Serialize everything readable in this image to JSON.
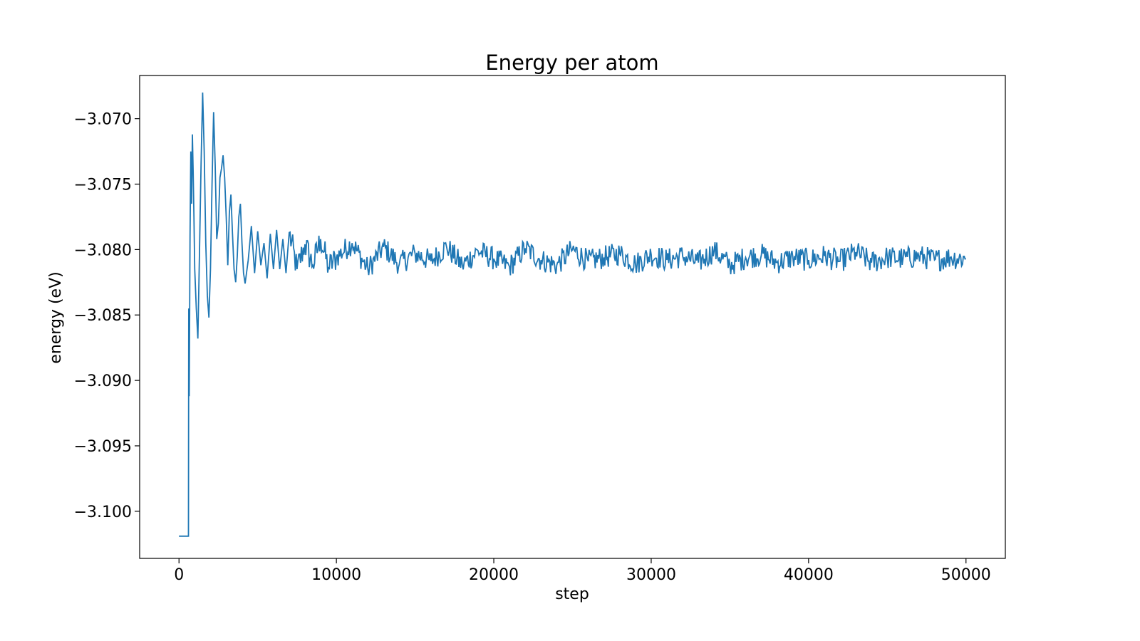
{
  "chart_data": {
    "type": "line",
    "title": "Energy per atom",
    "xlabel": "step",
    "ylabel": "energy (eV)",
    "xlim": [
      -2500,
      52500
    ],
    "ylim": [
      -3.1036,
      -3.0667
    ],
    "grid": false,
    "legend": "none",
    "xticks": [
      {
        "value": 0,
        "label": "0"
      },
      {
        "value": 10000,
        "label": "10000"
      },
      {
        "value": 20000,
        "label": "20000"
      },
      {
        "value": 30000,
        "label": "30000"
      },
      {
        "value": 40000,
        "label": "40000"
      },
      {
        "value": 50000,
        "label": "50000"
      }
    ],
    "yticks": [
      {
        "value": -3.07,
        "label": "−3.070"
      },
      {
        "value": -3.075,
        "label": "−3.075"
      },
      {
        "value": -3.08,
        "label": "−3.080"
      },
      {
        "value": -3.085,
        "label": "−3.085"
      },
      {
        "value": -3.09,
        "label": "−3.090"
      },
      {
        "value": -3.095,
        "label": "−3.095"
      },
      {
        "value": -3.1,
        "label": "−3.100"
      }
    ],
    "series": [
      {
        "color": "#1f77b4",
        "x": [
          0,
          300,
          600,
          620,
          650,
          700,
          750,
          800,
          850,
          900,
          950,
          1000,
          1100,
          1200,
          1300,
          1400,
          1500,
          1600,
          1700,
          1800,
          1900,
          2000,
          2100,
          2200,
          2300,
          2400,
          2500,
          2600,
          2700,
          2800,
          2900,
          3000,
          3100,
          3200,
          3300,
          3400,
          3500,
          3600,
          3700,
          3800,
          3900,
          4000,
          4100,
          4200,
          4400,
          4600,
          4800,
          5000,
          5200,
          5400,
          5600,
          5800,
          6000,
          6200,
          6400,
          6600,
          6800,
          7000,
          7500,
          8000,
          8500,
          9000,
          9500,
          10000,
          11000,
          12000,
          13000,
          14000,
          15000,
          16000,
          17000,
          18000,
          19000,
          20000,
          21000,
          22000,
          23000,
          24000,
          25000,
          26000,
          27000,
          28000,
          29000,
          30000,
          31000,
          32000,
          33000,
          34000,
          35000,
          36000,
          37000,
          38000,
          39000,
          40000,
          41000,
          42000,
          43000,
          44000,
          45000,
          46000,
          47000,
          48000,
          49000,
          50000
        ],
        "y": [
          -3.1019,
          -3.1019,
          -3.1019,
          -3.0845,
          -3.0912,
          -3.079,
          -3.0725,
          -3.0765,
          -3.0712,
          -3.074,
          -3.0775,
          -3.0815,
          -3.0845,
          -3.0868,
          -3.0805,
          -3.0735,
          -3.068,
          -3.0725,
          -3.0795,
          -3.0835,
          -3.0852,
          -3.0815,
          -3.075,
          -3.0695,
          -3.0735,
          -3.0792,
          -3.078,
          -3.0745,
          -3.0738,
          -3.0728,
          -3.0745,
          -3.0775,
          -3.0812,
          -3.0772,
          -3.0758,
          -3.0788,
          -3.0815,
          -3.0825,
          -3.0805,
          -3.0775,
          -3.0765,
          -3.0795,
          -3.0818,
          -3.0826,
          -3.0808,
          -3.0782,
          -3.0818,
          -3.0786,
          -3.0812,
          -3.0795,
          -3.0822,
          -3.0788,
          -3.0815,
          -3.0785,
          -3.0815,
          -3.0792,
          -3.0818,
          -3.0787,
          -3.0815,
          -3.0796,
          -3.0812,
          -3.0792,
          -3.0814,
          -3.0806,
          -3.0795,
          -3.0815,
          -3.0798,
          -3.0811,
          -3.0803,
          -3.0809,
          -3.0798,
          -3.0812,
          -3.0801,
          -3.0807,
          -3.0813,
          -3.0799,
          -3.0808,
          -3.0812,
          -3.08,
          -3.0809,
          -3.0806,
          -3.0803,
          -3.0811,
          -3.0804,
          -3.0808,
          -3.0805,
          -3.081,
          -3.0801,
          -3.0812,
          -3.0806,
          -3.0804,
          -3.081,
          -3.0806,
          -3.0808,
          -3.0805,
          -3.0809,
          -3.0802,
          -3.081,
          -3.0806,
          -3.0807,
          -3.0805,
          -3.0808,
          -3.0806,
          -3.0807
        ]
      }
    ]
  }
}
